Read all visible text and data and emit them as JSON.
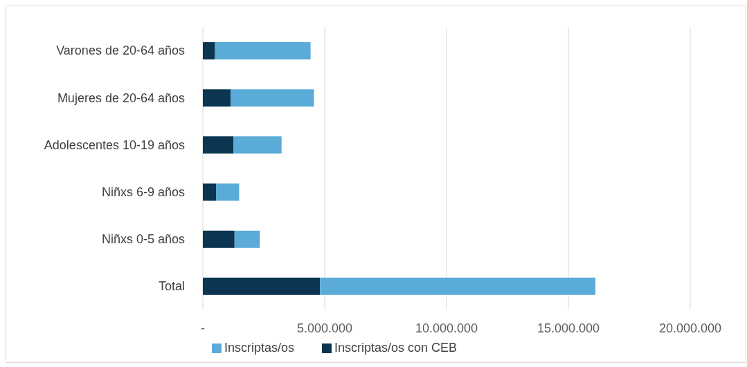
{
  "chart_data": {
    "type": "bar",
    "orientation": "horizontal",
    "stacked": true,
    "categories": [
      "Varones  de 20-64 años",
      "Mujeres de 20-64 años",
      "Adolescentes 10-19 años",
      "Niñxs 6-9 años",
      "Niñxs 0-5 años",
      "Total"
    ],
    "series": [
      {
        "name": "Inscriptas/os con CEB",
        "color": "#0b3550",
        "values": [
          500000,
          1140000,
          1250000,
          540000,
          1300000,
          4810000
        ]
      },
      {
        "name": "Inscriptas/os",
        "color": "#5aabd7",
        "values": [
          3920000,
          3420000,
          1980000,
          950000,
          1040000,
          11300000
        ]
      }
    ],
    "xlim": [
      0,
      20000000
    ],
    "xticks": [
      {
        "value": 0,
        "label": "-"
      },
      {
        "value": 5000000,
        "label": "5.000.000"
      },
      {
        "value": 10000000,
        "label": "10.000.000"
      },
      {
        "value": 15000000,
        "label": "15.000.000"
      },
      {
        "value": 20000000,
        "label": "20.000.000"
      }
    ],
    "grid": "x",
    "legend": "bottom"
  }
}
